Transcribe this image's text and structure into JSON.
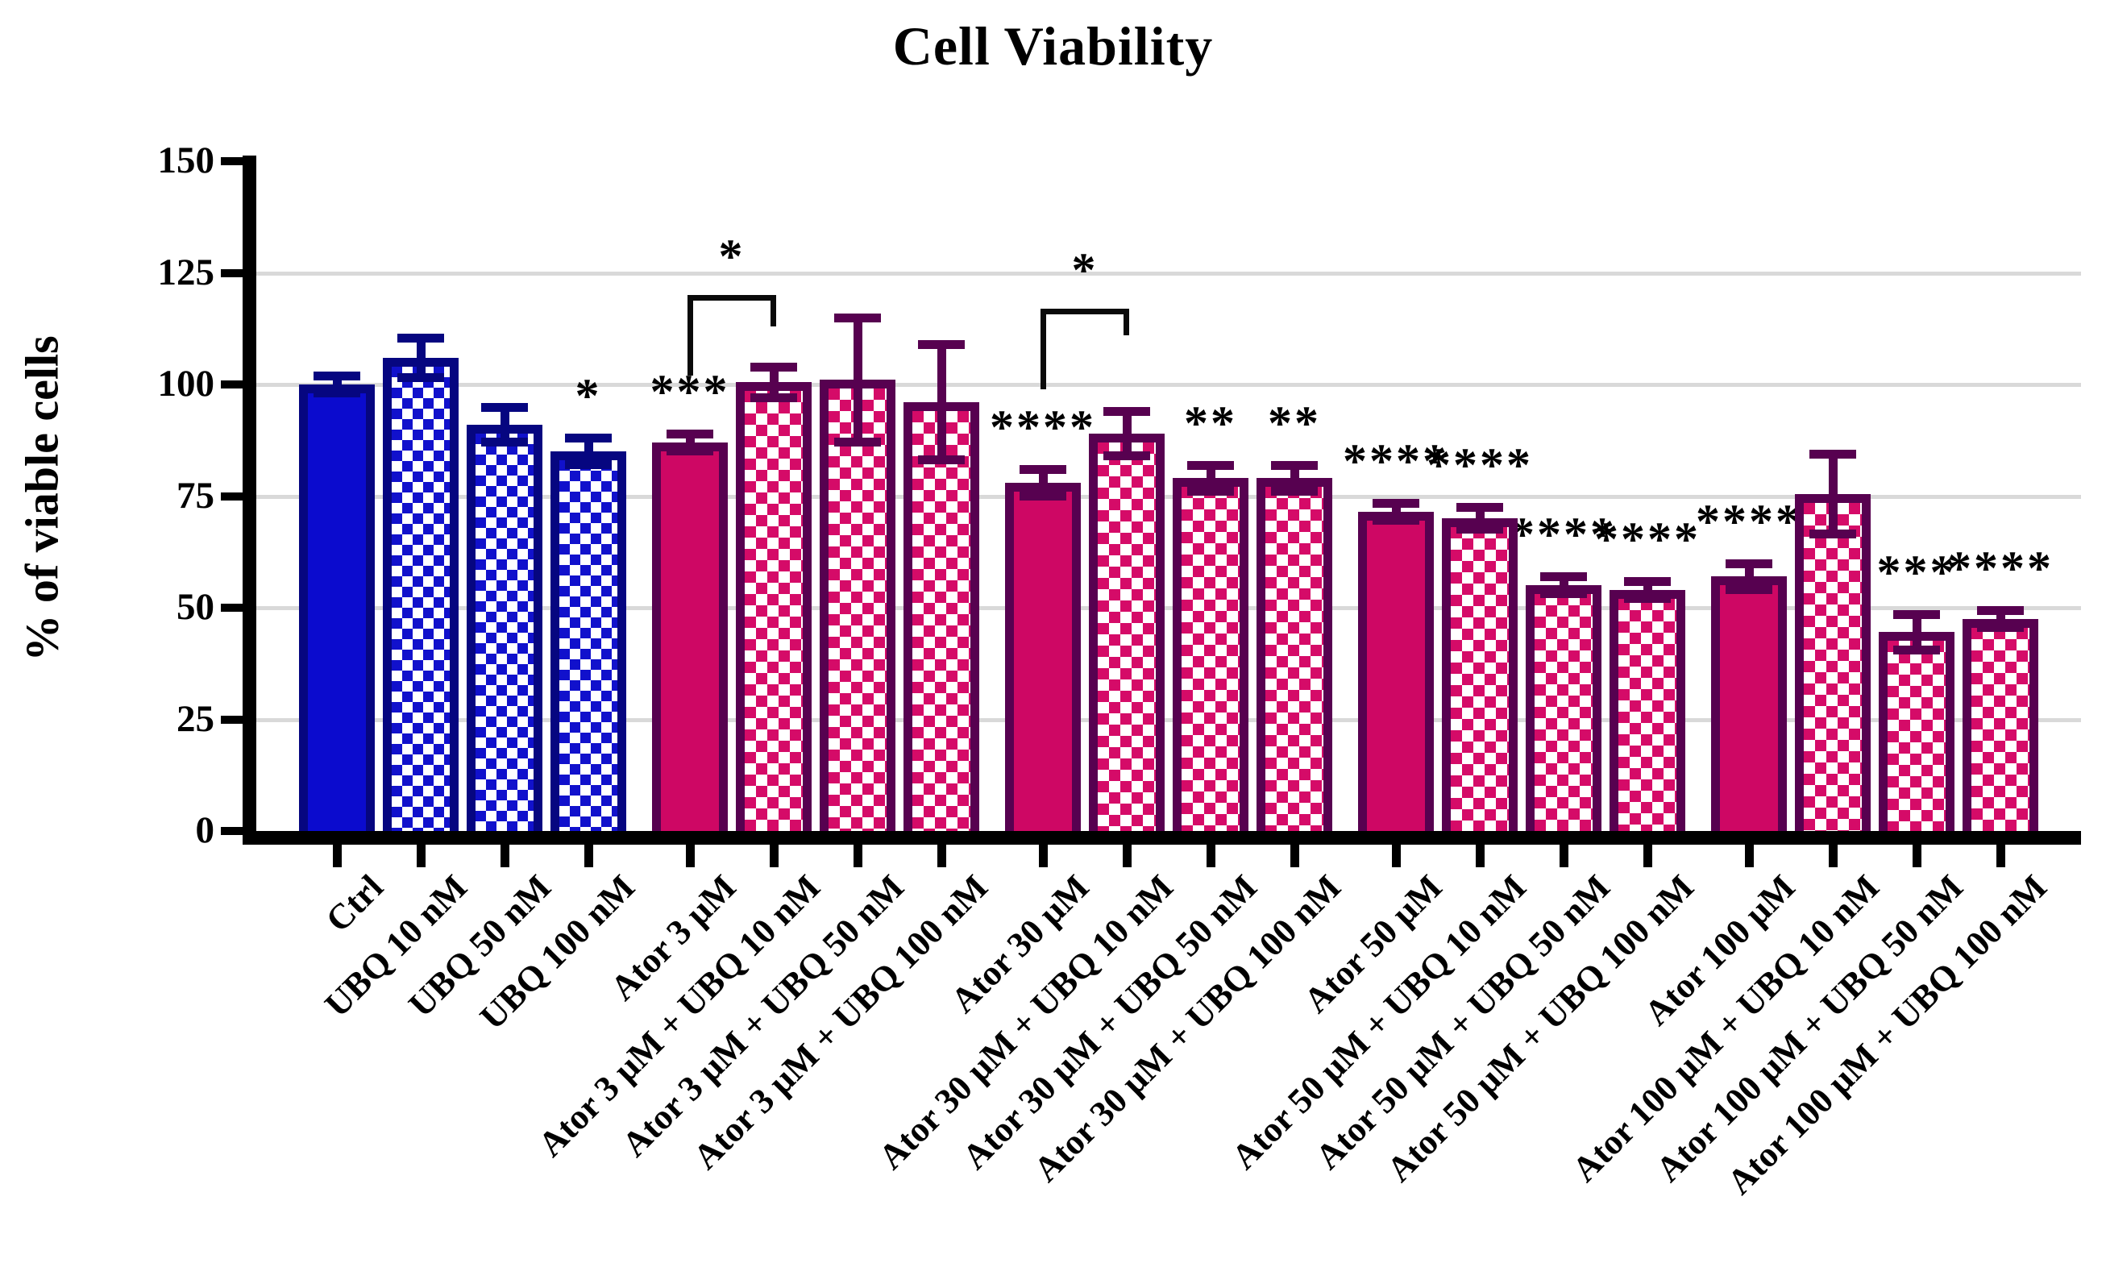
{
  "title": "Cell Viability",
  "y_axis": {
    "label": "% of viable cells",
    "ticks": [
      0,
      25,
      50,
      75,
      100,
      125,
      150
    ],
    "max": 150
  },
  "colors": {
    "blue_fill": "#0b0bce",
    "blue_border": "#060680",
    "magenta_fill": "#ce0764",
    "magenta_border": "#570150",
    "gridline": "#d9d9d9",
    "axis": "#000000",
    "background": "#ffffff"
  },
  "chart_data": {
    "type": "bar",
    "title": "Cell Viability",
    "xlabel": "",
    "ylabel": "% of viable cells",
    "ylim": [
      0,
      150
    ],
    "yticks": [
      0,
      25,
      50,
      75,
      100,
      125,
      150
    ],
    "grid": "horizontal-light-gray",
    "legend": "none",
    "categories": [
      "Ctrl",
      "UBQ 10 nM",
      "UBQ 50 nM",
      "UBQ 100 nM",
      "Ator 3 µM",
      "Ator 3 µM + UBQ 10 nM",
      "Ator 3 µM + UBQ 50 nM",
      "Ator 3 µM + UBQ 100 nM",
      "Ator 30 µM",
      "Ator 30 µM + UBQ 10 nM",
      "Ator 30 µM + UBQ 50 nM",
      "Ator 30 µM + UBQ 100 nM",
      "Ator 50 µM",
      "Ator 50 µM + UBQ 10 nM",
      "Ator 50 µM + UBQ 50 nM",
      "Ator 50 µM + UBQ 100 nM",
      "Ator 100 µM",
      "Ator 100 µM + UBQ 10 nM",
      "Ator 100 µM + UBQ 50 nM",
      "Ator 100 µM + UBQ 100 nM"
    ],
    "values": [
      100,
      106,
      91,
      85,
      87,
      100.5,
      101,
      96,
      78,
      89,
      79,
      79,
      71.5,
      70,
      55,
      54,
      57,
      75.5,
      44.5,
      47.5
    ],
    "errors": [
      2,
      4.5,
      4,
      3,
      2,
      3.5,
      14,
      13,
      3,
      5,
      3,
      3,
      2,
      2.5,
      2,
      2,
      3,
      9,
      4,
      2
    ],
    "significance": [
      "",
      "",
      "",
      "*",
      "***",
      "",
      "",
      "",
      "****",
      "",
      "**",
      "**",
      "****",
      "****",
      "****",
      "****",
      "****",
      "",
      "***",
      "****"
    ],
    "styles": [
      "blue-solid",
      "blue-pattern",
      "blue-pattern",
      "blue-pattern",
      "magenta-solid",
      "magenta-pattern",
      "magenta-pattern",
      "magenta-pattern",
      "magenta-solid",
      "magenta-pattern",
      "magenta-pattern",
      "magenta-pattern",
      "magenta-solid",
      "magenta-pattern",
      "magenta-pattern",
      "magenta-pattern",
      "magenta-solid",
      "magenta-pattern",
      "magenta-pattern",
      "magenta-pattern"
    ],
    "comparisons": [
      {
        "from": 4,
        "to": 5,
        "label": "*",
        "top": 120,
        "from_drop_to": 102,
        "to_drop_to": 113
      },
      {
        "from": 8,
        "to": 9,
        "label": "*",
        "top": 117,
        "from_drop_to": 99,
        "to_drop_to": 111
      }
    ]
  }
}
